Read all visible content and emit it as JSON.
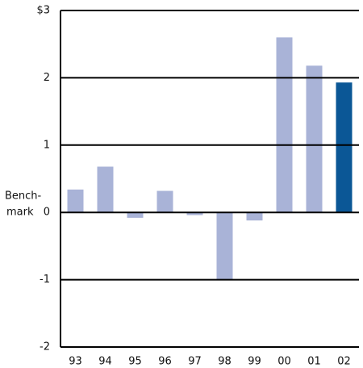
{
  "chart_data": {
    "type": "bar",
    "categories": [
      "93",
      "94",
      "95",
      "96",
      "97",
      "98",
      "99",
      "00",
      "01",
      "02"
    ],
    "values": [
      0.34,
      0.68,
      -0.08,
      0.32,
      -0.04,
      -1.0,
      -0.12,
      2.6,
      2.18,
      1.93
    ],
    "colors": [
      "#a9b3d7",
      "#a9b3d7",
      "#a9b3d7",
      "#a9b3d7",
      "#a9b3d7",
      "#a9b3d7",
      "#a9b3d7",
      "#a9b3d7",
      "#a9b3d7",
      "#0b5796"
    ],
    "ylim": [
      -2,
      3
    ],
    "yticks": [
      -2,
      -1,
      0,
      1,
      2,
      {
        "value": 3,
        "label": "$3"
      }
    ],
    "annotation_lines": [
      "Bench-",
      "mark"
    ],
    "grid": true
  }
}
